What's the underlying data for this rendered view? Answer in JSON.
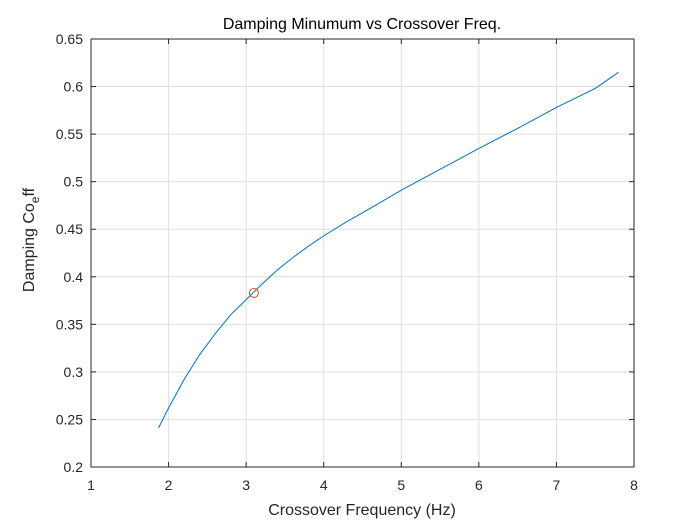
{
  "chart_data": {
    "type": "line",
    "title": "Damping Minumum vs Crossover Freq.",
    "xlabel": "Crossover Frequency (Hz)",
    "ylabel": "Damping Co",
    "ylabel_sub": "e",
    "ylabel_tail": "ff",
    "xlim": [
      1,
      8
    ],
    "ylim": [
      0.2,
      0.65
    ],
    "x_ticks": [
      "1",
      "2",
      "3",
      "4",
      "5",
      "6",
      "7",
      "8"
    ],
    "y_ticks": [
      "0.2",
      "0.25",
      "0.3",
      "0.35",
      "0.4",
      "0.45",
      "0.5",
      "0.55",
      "0.6",
      "0.65"
    ],
    "grid": true,
    "series": [
      {
        "color": "#0072bd",
        "x": [
          1.87,
          2.0,
          2.2,
          2.4,
          2.6,
          2.8,
          3.0,
          3.2,
          3.4,
          3.6,
          3.8,
          4.0,
          4.3,
          4.6,
          5.0,
          5.5,
          6.0,
          6.5,
          7.0,
          7.5,
          7.8
        ],
        "y": [
          0.241,
          0.262,
          0.292,
          0.318,
          0.34,
          0.36,
          0.376,
          0.392,
          0.407,
          0.42,
          0.432,
          0.443,
          0.458,
          0.472,
          0.491,
          0.513,
          0.535,
          0.556,
          0.578,
          0.598,
          0.615
        ]
      }
    ],
    "marker": {
      "x": 3.1,
      "y": 0.383,
      "color": "#d95319",
      "shape": "circle"
    }
  }
}
